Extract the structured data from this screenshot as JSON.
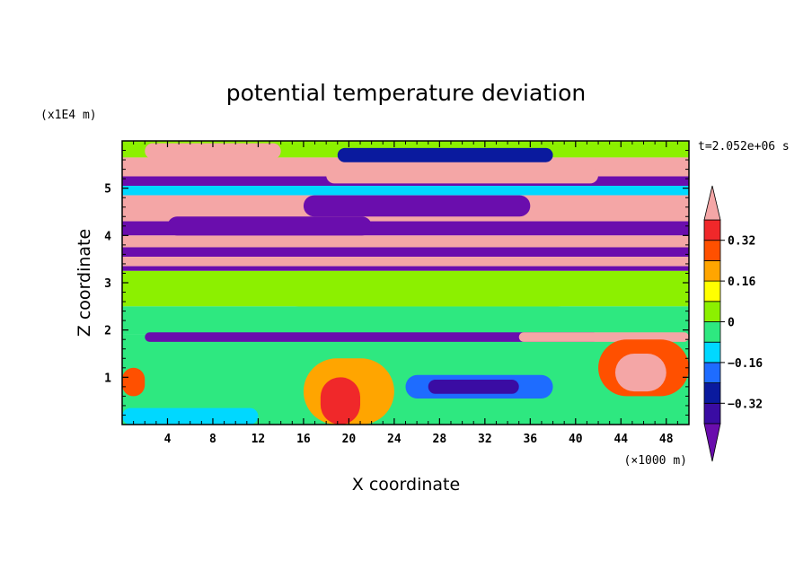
{
  "chart_data": {
    "type": "heatmap",
    "title": "potential temperature deviation",
    "xlabel": "X coordinate",
    "ylabel": "Z coordinate",
    "x_unit": "(×1000 m)",
    "y_unit": "(x1E4 m)",
    "time_label": "t=2.052e+06 s",
    "xlim": [
      0,
      50
    ],
    "ylim": [
      0,
      6
    ],
    "x_ticks": [
      "4",
      "8",
      "12",
      "16",
      "20",
      "24",
      "28",
      "32",
      "36",
      "40",
      "44",
      "48"
    ],
    "y_ticks": [
      "1",
      "2",
      "3",
      "4",
      "5"
    ],
    "colorbar": {
      "levels": [
        -0.4,
        -0.32,
        -0.24,
        -0.16,
        -0.08,
        0,
        0.08,
        0.16,
        0.24,
        0.32,
        0.4
      ],
      "tick_labels": [
        "0.32",
        "0.16",
        "0",
        "−0.16",
        "−0.32"
      ],
      "tick_values": [
        0.32,
        0.16,
        0,
        -0.16,
        -0.32
      ],
      "colors": [
        "#6a0dad",
        "#3a0ca3",
        "#0a1a9e",
        "#1e6cff",
        "#00d8ff",
        "#2ee880",
        "#8cf000",
        "#ffff00",
        "#ffa500",
        "#ff5000",
        "#f0282a",
        "#f4a6a6"
      ],
      "extend": "both"
    },
    "bands": [
      {
        "z0": 5.65,
        "z1": 6.0,
        "value": 0.05
      },
      {
        "z0": 5.25,
        "z1": 5.65,
        "value": 0.45
      },
      {
        "z0": 5.05,
        "z1": 5.25,
        "value": -0.45
      },
      {
        "z0": 4.85,
        "z1": 5.05,
        "value": -0.1
      },
      {
        "z0": 4.3,
        "z1": 4.85,
        "value": 0.45
      },
      {
        "z0": 4.0,
        "z1": 4.3,
        "value": -0.45
      },
      {
        "z0": 3.75,
        "z1": 4.0,
        "value": 0.45
      },
      {
        "z0": 3.55,
        "z1": 3.75,
        "value": -0.45
      },
      {
        "z0": 3.35,
        "z1": 3.55,
        "value": 0.45
      },
      {
        "z0": 3.25,
        "z1": 3.35,
        "value": -0.45
      },
      {
        "z0": 2.5,
        "z1": 3.25,
        "value": 0.02
      },
      {
        "z0": 1.9,
        "z1": 2.5,
        "value": -0.04
      },
      {
        "z0": 0,
        "z1": 1.9,
        "value": -0.06
      }
    ],
    "features": [
      {
        "x0": 2,
        "x1": 42,
        "z0": 1.75,
        "z1": 1.95,
        "value": -0.45
      },
      {
        "x0": 35,
        "x1": 50,
        "z0": 1.75,
        "z1": 1.95,
        "value": 0.45
      },
      {
        "x0": 16,
        "x1": 24,
        "z0": 0,
        "z1": 1.4,
        "value": 0.16
      },
      {
        "x0": 17.5,
        "x1": 21,
        "z0": 0,
        "z1": 1.0,
        "value": 0.32
      },
      {
        "x0": 25,
        "x1": 38,
        "z0": 0.55,
        "z1": 1.05,
        "value": -0.24
      },
      {
        "x0": 27,
        "x1": 35,
        "z0": 0.65,
        "z1": 0.95,
        "value": -0.36
      },
      {
        "x0": 42,
        "x1": 50,
        "z0": 0.6,
        "z1": 1.8,
        "value": 0.3
      },
      {
        "x0": 43.5,
        "x1": 48,
        "z0": 0.7,
        "z1": 1.5,
        "value": 0.45
      },
      {
        "x0": 0,
        "x1": 2,
        "z0": 0.6,
        "z1": 1.2,
        "value": 0.3
      },
      {
        "x0": 0,
        "x1": 12,
        "z0": 0,
        "z1": 0.35,
        "value": -0.1
      },
      {
        "x0": 2,
        "x1": 14,
        "z0": 5.62,
        "z1": 5.95,
        "value": 0.45
      },
      {
        "x0": 19,
        "x1": 38,
        "z0": 5.55,
        "z1": 5.85,
        "value": -0.3
      },
      {
        "x0": 18,
        "x1": 42,
        "z0": 5.1,
        "z1": 5.45,
        "value": 0.45
      },
      {
        "x0": 16,
        "x1": 36,
        "z0": 4.4,
        "z1": 4.85,
        "value": -0.45
      },
      {
        "x0": 4,
        "x1": 22,
        "z0": 4.0,
        "z1": 4.4,
        "value": -0.45
      },
      {
        "x0": 14,
        "x1": 40,
        "z0": 2.5,
        "z1": 3.25,
        "value": 0.06
      }
    ]
  }
}
